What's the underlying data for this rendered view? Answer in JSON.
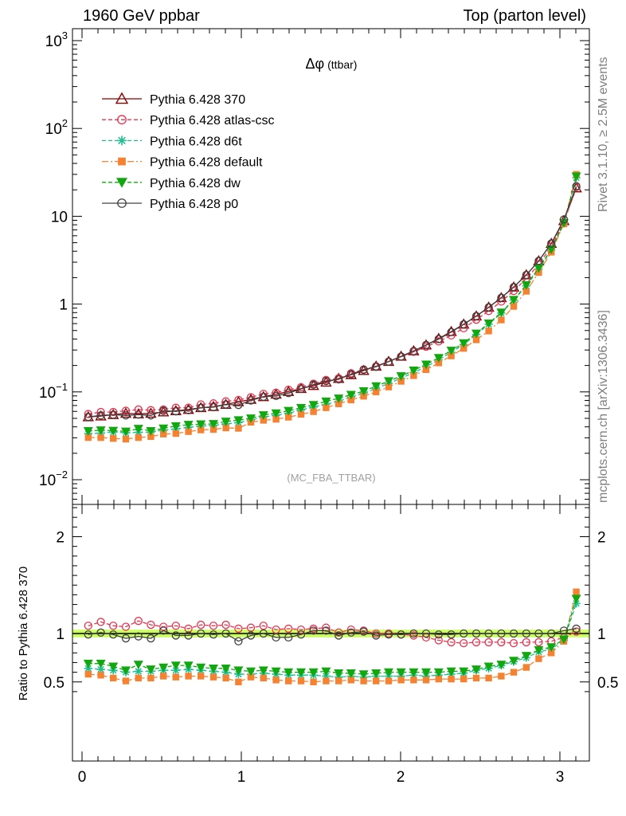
{
  "header": {
    "left": "1960 GeV ppbar",
    "right": "Top (parton level)"
  },
  "side": {
    "rivet": "Rivet 3.1.10, ≥ 2.5M events",
    "mcplots": "mcplots.cern.ch [arXiv:1306.3436]"
  },
  "plot_title": {
    "symbol": "Δφ",
    "rest": " (ttbar)"
  },
  "watermark": "(MC_FBA_TTBAR)",
  "ratio_ylabel": "Ratio to Pythia 6.428 370",
  "colors": {
    "p370": "#8b0000",
    "atlas": "#e8334f",
    "d6t": "#1fbf8f",
    "default": "#f58231",
    "dw": "#11a80f",
    "p0": "#404040",
    "band": "#ccff66"
  },
  "chart_data": [
    {
      "type": "line",
      "title": "Δφ (ttbar)",
      "yscale": "log",
      "ylim": [
        0.0055,
        1300
      ],
      "xlim": [
        -0.05,
        3.2
      ],
      "xticks": [
        "0",
        "1",
        "2",
        "3"
      ],
      "yticks": [
        "10^-2",
        "10^-1",
        "1",
        "10",
        "10^2",
        "10^3"
      ],
      "legend_position": "top-left",
      "x": [
        0.039,
        0.118,
        0.196,
        0.275,
        0.354,
        0.432,
        0.511,
        0.589,
        0.668,
        0.746,
        0.825,
        0.903,
        0.982,
        1.06,
        1.139,
        1.218,
        1.296,
        1.375,
        1.453,
        1.532,
        1.611,
        1.689,
        1.768,
        1.846,
        1.925,
        2.003,
        2.082,
        2.16,
        2.239,
        2.318,
        2.396,
        2.475,
        2.553,
        2.632,
        2.71,
        2.789,
        2.867,
        2.946,
        3.025,
        3.103
      ],
      "series": [
        {
          "name": "Pythia 6.428 370",
          "key": "p370",
          "marker": "triangle-open",
          "dash": "",
          "values": [
            0.052,
            0.053,
            0.055,
            0.057,
            0.056,
            0.057,
            0.059,
            0.061,
            0.063,
            0.066,
            0.068,
            0.072,
            0.077,
            0.082,
            0.088,
            0.094,
            0.101,
            0.109,
            0.118,
            0.129,
            0.142,
            0.157,
            0.175,
            0.196,
            0.222,
            0.254,
            0.293,
            0.342,
            0.405,
            0.486,
            0.59,
            0.73,
            0.92,
            1.18,
            1.56,
            2.15,
            3.1,
            4.9,
            8.9,
            21
          ]
        },
        {
          "name": "Pythia 6.428 atlas-csc",
          "key": "atlas",
          "marker": "circle-open",
          "dash": "5,3",
          "values": [
            0.056,
            0.059,
            0.059,
            0.061,
            0.063,
            0.062,
            0.063,
            0.066,
            0.066,
            0.072,
            0.074,
            0.078,
            0.081,
            0.087,
            0.095,
            0.098,
            0.106,
            0.113,
            0.124,
            0.137,
            0.143,
            0.163,
            0.18,
            0.196,
            0.222,
            0.252,
            0.286,
            0.327,
            0.376,
            0.44,
            0.531,
            0.664,
            0.834,
            1.07,
            1.41,
            1.95,
            2.83,
            4.51,
            8.5,
            21.5
          ]
        },
        {
          "name": "Pythia 6.428 d6t",
          "key": "d6t",
          "marker": "star",
          "dash": "5,3",
          "values": [
            0.0335,
            0.0339,
            0.035,
            0.0342,
            0.0347,
            0.0348,
            0.0366,
            0.0378,
            0.0395,
            0.041,
            0.0415,
            0.0432,
            0.0447,
            0.0475,
            0.0519,
            0.0542,
            0.0573,
            0.0623,
            0.0672,
            0.0722,
            0.0781,
            0.0873,
            0.0966,
            0.109,
            0.125,
            0.143,
            0.166,
            0.193,
            0.232,
            0.282,
            0.347,
            0.45,
            0.59,
            0.79,
            1.11,
            1.61,
            2.51,
            4.12,
            8.3,
            27.5
          ]
        },
        {
          "name": "Pythia 6.428 default",
          "key": "default",
          "marker": "square",
          "dash": "8,3,2,3",
          "values": [
            0.0302,
            0.0302,
            0.0295,
            0.029,
            0.0302,
            0.031,
            0.0331,
            0.0336,
            0.0353,
            0.0369,
            0.0374,
            0.0389,
            0.0385,
            0.0451,
            0.0475,
            0.0488,
            0.0515,
            0.0556,
            0.0596,
            0.066,
            0.0731,
            0.0809,
            0.0893,
            0.0999,
            0.1138,
            0.1321,
            0.1532,
            0.179,
            0.214,
            0.257,
            0.313,
            0.392,
            0.494,
            0.66,
            0.941,
            1.4,
            2.29,
            3.9,
            8.2,
            30
          ]
        },
        {
          "name": "Pythia 6.428 dw",
          "key": "dw",
          "marker": "triangle-down",
          "dash": "5,3",
          "values": [
            0.0359,
            0.0366,
            0.0362,
            0.0355,
            0.0381,
            0.0359,
            0.0384,
            0.0408,
            0.0423,
            0.0429,
            0.0432,
            0.046,
            0.0477,
            0.0501,
            0.0544,
            0.0572,
            0.0611,
            0.0658,
            0.0713,
            0.0781,
            0.0844,
            0.0929,
            0.1021,
            0.1163,
            0.1328,
            0.1514,
            0.1759,
            0.2055,
            0.2442,
            0.2956,
            0.3593,
            0.4635,
            0.6039,
            0.8035,
            1.12,
            1.65,
            2.57,
            4.2,
            8.4,
            28.5
          ]
        },
        {
          "name": "Pythia 6.428 p0",
          "key": "p0",
          "marker": "circle-open",
          "dash": "",
          "values": [
            0.052,
            0.054,
            0.055,
            0.054,
            0.055,
            0.054,
            0.061,
            0.06,
            0.062,
            0.066,
            0.067,
            0.072,
            0.071,
            0.08,
            0.088,
            0.09,
            0.097,
            0.108,
            0.121,
            0.133,
            0.139,
            0.159,
            0.179,
            0.193,
            0.221,
            0.253,
            0.292,
            0.342,
            0.4,
            0.48,
            0.59,
            0.73,
            0.92,
            1.18,
            1.56,
            2.15,
            3.1,
            4.9,
            9.2,
            22
          ]
        }
      ]
    },
    {
      "type": "line",
      "ylabel": "Ratio to Pythia 6.428 370",
      "ylim": [
        0.33,
        2.3
      ],
      "xlim": [
        -0.05,
        3.2
      ],
      "yticks": [
        "0.5",
        "1",
        "2"
      ],
      "xticks": [
        "0",
        "1",
        "2",
        "3"
      ],
      "reference_band": [
        0.96,
        1.04
      ],
      "x": [
        0.039,
        0.118,
        0.196,
        0.275,
        0.354,
        0.432,
        0.511,
        0.589,
        0.668,
        0.746,
        0.825,
        0.903,
        0.982,
        1.06,
        1.139,
        1.218,
        1.296,
        1.375,
        1.453,
        1.532,
        1.611,
        1.689,
        1.768,
        1.846,
        1.925,
        2.003,
        2.082,
        2.16,
        2.239,
        2.318,
        2.396,
        2.475,
        2.553,
        2.632,
        2.71,
        2.789,
        2.867,
        2.946,
        3.025,
        3.103
      ],
      "series": [
        {
          "name": "Pythia 6.428 atlas-csc",
          "key": "atlas",
          "marker": "circle-open",
          "dash": "5,3",
          "values": [
            1.08,
            1.12,
            1.08,
            1.07,
            1.13,
            1.09,
            1.07,
            1.08,
            1.05,
            1.09,
            1.08,
            1.09,
            1.05,
            1.06,
            1.08,
            1.04,
            1.05,
            1.04,
            1.05,
            1.06,
            1.01,
            1.04,
            1.03,
            1.0,
            1.0,
            0.99,
            0.98,
            0.96,
            0.93,
            0.91,
            0.9,
            0.91,
            0.91,
            0.91,
            0.9,
            0.91,
            0.91,
            0.92,
            0.96,
            1.02
          ]
        },
        {
          "name": "Pythia 6.428 d6t",
          "key": "d6t",
          "marker": "star",
          "dash": "5,3",
          "values": [
            0.64,
            0.63,
            0.62,
            0.6,
            0.61,
            0.61,
            0.62,
            0.62,
            0.63,
            0.62,
            0.61,
            0.6,
            0.58,
            0.58,
            0.59,
            0.58,
            0.57,
            0.57,
            0.57,
            0.56,
            0.55,
            0.56,
            0.55,
            0.56,
            0.56,
            0.56,
            0.57,
            0.56,
            0.57,
            0.58,
            0.59,
            0.62,
            0.64,
            0.67,
            0.71,
            0.75,
            0.81,
            0.84,
            0.93,
            1.31
          ]
        },
        {
          "name": "Pythia 6.428 default",
          "key": "default",
          "marker": "square",
          "dash": "8,3,2,3",
          "values": [
            0.58,
            0.57,
            0.54,
            0.51,
            0.54,
            0.54,
            0.56,
            0.55,
            0.56,
            0.56,
            0.55,
            0.54,
            0.5,
            0.55,
            0.54,
            0.52,
            0.51,
            0.51,
            0.5,
            0.51,
            0.51,
            0.52,
            0.51,
            0.51,
            0.51,
            0.52,
            0.52,
            0.52,
            0.53,
            0.53,
            0.53,
            0.54,
            0.54,
            0.56,
            0.6,
            0.65,
            0.74,
            0.8,
            0.92,
            1.43
          ]
        },
        {
          "name": "Pythia 6.428 dw",
          "key": "dw",
          "marker": "triangle-down",
          "dash": "5,3",
          "values": [
            0.69,
            0.69,
            0.66,
            0.62,
            0.68,
            0.63,
            0.65,
            0.67,
            0.67,
            0.65,
            0.64,
            0.64,
            0.62,
            0.61,
            0.62,
            0.61,
            0.6,
            0.6,
            0.6,
            0.61,
            0.59,
            0.59,
            0.58,
            0.59,
            0.6,
            0.6,
            0.6,
            0.6,
            0.6,
            0.61,
            0.61,
            0.63,
            0.66,
            0.68,
            0.72,
            0.77,
            0.83,
            0.86,
            0.94,
            1.36
          ]
        },
        {
          "name": "Pythia 6.428 p0",
          "key": "p0",
          "marker": "circle-open",
          "dash": "",
          "values": [
            0.99,
            1.01,
            0.99,
            0.95,
            0.97,
            0.95,
            1.03,
            0.98,
            0.98,
            1.0,
            0.99,
            1.0,
            0.92,
            0.98,
            1.0,
            0.96,
            0.96,
            0.99,
            1.03,
            1.03,
            0.98,
            1.01,
            1.02,
            0.98,
            0.99,
            0.99,
            1.0,
            1.0,
            0.99,
            0.99,
            1.0,
            1.0,
            1.0,
            1.0,
            1.0,
            1.0,
            1.0,
            1.0,
            1.03,
            1.05
          ]
        }
      ]
    }
  ]
}
